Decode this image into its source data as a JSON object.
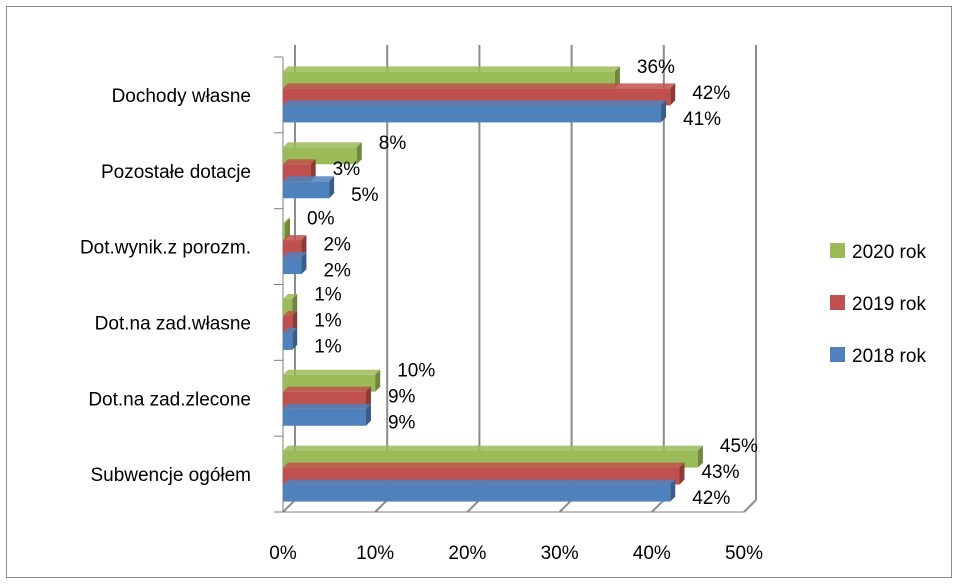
{
  "chart_data": {
    "type": "bar",
    "orientation": "horizontal",
    "style": "3d-clustered",
    "title": "",
    "xlabel": "",
    "ylabel": "",
    "xlim": [
      0,
      50
    ],
    "categories": [
      "Dochody własne",
      "Pozostałe dotacje",
      "Dot.wynik.z porozm.",
      "Dot.na zad.własne",
      "Dot.na zad.zlecone",
      "Subwencje ogółem"
    ],
    "tick_labels": [
      "0%",
      "10%",
      "20%",
      "30%",
      "40%",
      "50%"
    ],
    "series": [
      {
        "name": "2020 rok",
        "color": "#9bbb59",
        "values": [
          36,
          8,
          0,
          1,
          10,
          45
        ],
        "labels": [
          "36%",
          "8%",
          "0%",
          "1%",
          "10%",
          "45%"
        ]
      },
      {
        "name": "2019 rok",
        "color": "#c0504d",
        "values": [
          42,
          3,
          2,
          1,
          9,
          43
        ],
        "labels": [
          "42%",
          "3%",
          "2%",
          "1%",
          "9%",
          "43%"
        ]
      },
      {
        "name": "2018 rok",
        "color": "#4f81bd",
        "values": [
          41,
          5,
          2,
          1,
          9,
          42
        ],
        "labels": [
          "41%",
          "5%",
          "2%",
          "1%",
          "9%",
          "42%"
        ]
      }
    ],
    "grid": true,
    "legend_position": "right"
  }
}
